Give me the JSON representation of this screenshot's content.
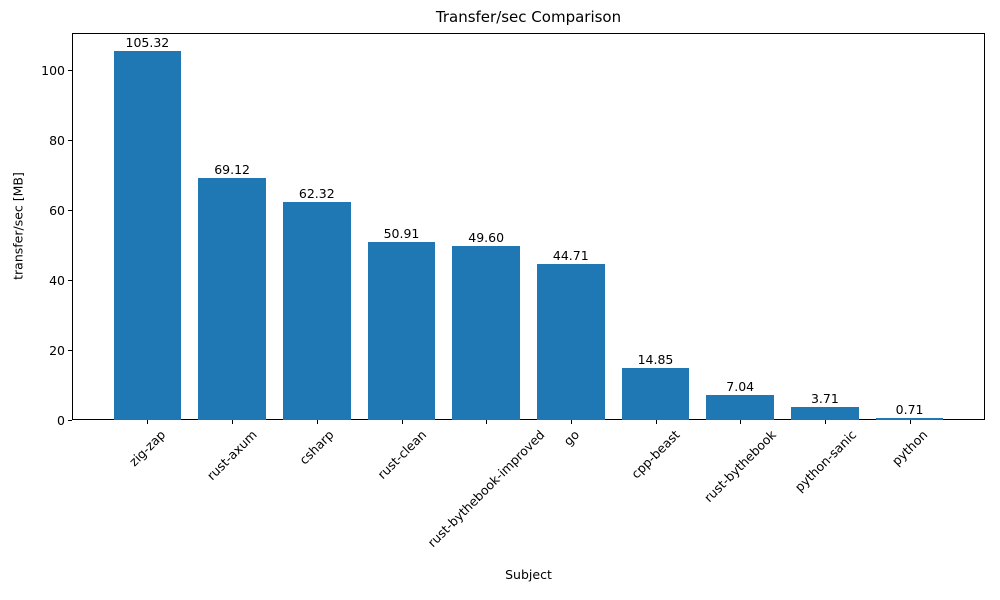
{
  "figure": {
    "title": "Transfer/sec Comparison"
  },
  "chart_data": {
    "type": "bar",
    "title": "Transfer/sec Comparison",
    "xlabel": "Subject",
    "ylabel": "transfer/sec [MB]",
    "categories": [
      "zig-zap",
      "rust-axum",
      "csharp",
      "rust-clean",
      "rust-bythebook-improved",
      "go",
      "cpp-beast",
      "rust-bythebook",
      "python-sanic",
      "python"
    ],
    "values": [
      105.32,
      69.12,
      62.32,
      50.91,
      49.6,
      44.71,
      14.85,
      7.04,
      3.71,
      0.71
    ],
    "value_labels": [
      "105.32",
      "69.12",
      "62.32",
      "50.91",
      "49.60",
      "44.71",
      "14.85",
      "7.04",
      "3.71",
      "0.71"
    ],
    "y_ticks": [
      0,
      20,
      40,
      60,
      80,
      100
    ],
    "y_tick_labels": [
      "0",
      "20",
      "40",
      "60",
      "80",
      "100"
    ],
    "ylim": [
      0,
      110.59
    ],
    "grid": false,
    "legend_position": "none",
    "bar_color": "#1f77b4",
    "text_color": "#000000",
    "background_color": "#ffffff"
  }
}
